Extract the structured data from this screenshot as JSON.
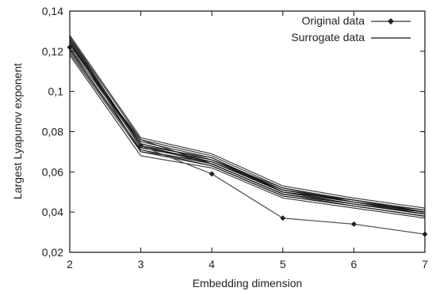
{
  "chart_data": {
    "type": "line",
    "xlabel": "Embedding dimension",
    "ylabel": "Largest Lyapunov exponent",
    "xlim": [
      2,
      7
    ],
    "ylim": [
      0.02,
      0.14
    ],
    "x_ticks": [
      2,
      3,
      4,
      5,
      6,
      7
    ],
    "x_tick_labels": [
      "2",
      "3",
      "4",
      "5",
      "6",
      "7"
    ],
    "y_ticks": [
      0.02,
      0.04,
      0.06,
      0.08,
      0.1,
      0.12,
      0.14
    ],
    "y_tick_labels": [
      "0,02",
      "0,04",
      "0,06",
      "0,08",
      "0,1",
      "0,12",
      "0,14"
    ],
    "grid": false,
    "legend": {
      "position": "top-right",
      "entries": [
        "Original data",
        "Surrogate data"
      ]
    },
    "x": [
      2,
      3,
      4,
      5,
      6,
      7
    ],
    "series": [
      {
        "name": "Original data",
        "style": "line-with-diamonds",
        "color": "#555555",
        "values": [
          0.122,
          0.073,
          0.059,
          0.037,
          0.034,
          0.029
        ]
      },
      {
        "name": "Surrogate data",
        "style": "band-of-lines",
        "color": "#111111",
        "lines": [
          [
            0.126,
            0.074,
            0.066,
            0.051,
            0.045,
            0.04
          ],
          [
            0.124,
            0.073,
            0.065,
            0.05,
            0.044,
            0.039
          ],
          [
            0.121,
            0.071,
            0.064,
            0.049,
            0.043,
            0.038
          ],
          [
            0.127,
            0.076,
            0.068,
            0.052,
            0.046,
            0.041
          ],
          [
            0.119,
            0.07,
            0.063,
            0.048,
            0.043,
            0.038
          ],
          [
            0.125,
            0.072,
            0.066,
            0.05,
            0.045,
            0.039
          ],
          [
            0.128,
            0.077,
            0.069,
            0.053,
            0.047,
            0.042
          ],
          [
            0.122,
            0.073,
            0.064,
            0.049,
            0.044,
            0.039
          ],
          [
            0.118,
            0.068,
            0.062,
            0.047,
            0.042,
            0.037
          ],
          [
            0.123,
            0.075,
            0.067,
            0.051,
            0.046,
            0.04
          ],
          [
            0.126,
            0.072,
            0.065,
            0.05,
            0.044,
            0.04
          ],
          [
            0.12,
            0.071,
            0.063,
            0.048,
            0.043,
            0.038
          ],
          [
            0.124,
            0.074,
            0.066,
            0.052,
            0.045,
            0.041
          ],
          [
            0.127,
            0.073,
            0.067,
            0.05,
            0.046,
            0.04
          ],
          [
            0.121,
            0.076,
            0.064,
            0.049,
            0.044,
            0.039
          ],
          [
            0.125,
            0.07,
            0.065,
            0.051,
            0.045,
            0.04
          ]
        ]
      }
    ]
  }
}
